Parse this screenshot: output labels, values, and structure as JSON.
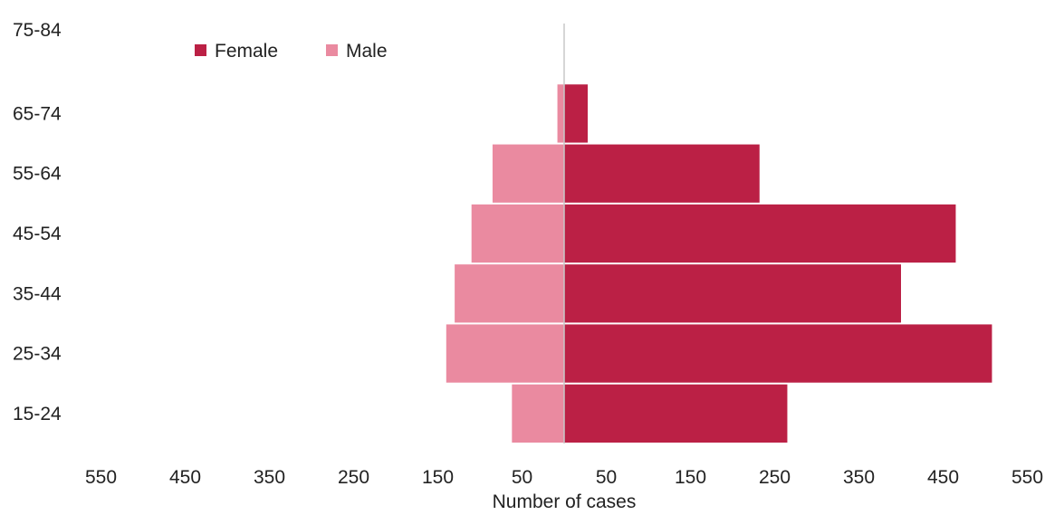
{
  "chart_data": {
    "type": "bar",
    "orientation": "horizontal",
    "categories": [
      "15-24",
      "25-34",
      "35-44",
      "45-54",
      "55-64",
      "65-74",
      "75-84"
    ],
    "series": [
      {
        "name": "Female",
        "values": [
          265,
          508,
          400,
          465,
          232,
          28,
          0
        ],
        "color": "#BB2045"
      },
      {
        "name": "Male",
        "values": [
          62,
          140,
          130,
          110,
          85,
          8,
          0
        ],
        "color": "#EA8AA0"
      }
    ],
    "xlabel": "Number of cases",
    "ylabel": "",
    "title": "",
    "x_tick_labels": [
      "550",
      "450",
      "350",
      "250",
      "150",
      "50",
      "50",
      "150",
      "250",
      "350",
      "450",
      "550"
    ],
    "xlim": [
      -550,
      550
    ],
    "legend_position": "top-left",
    "grid": false
  }
}
